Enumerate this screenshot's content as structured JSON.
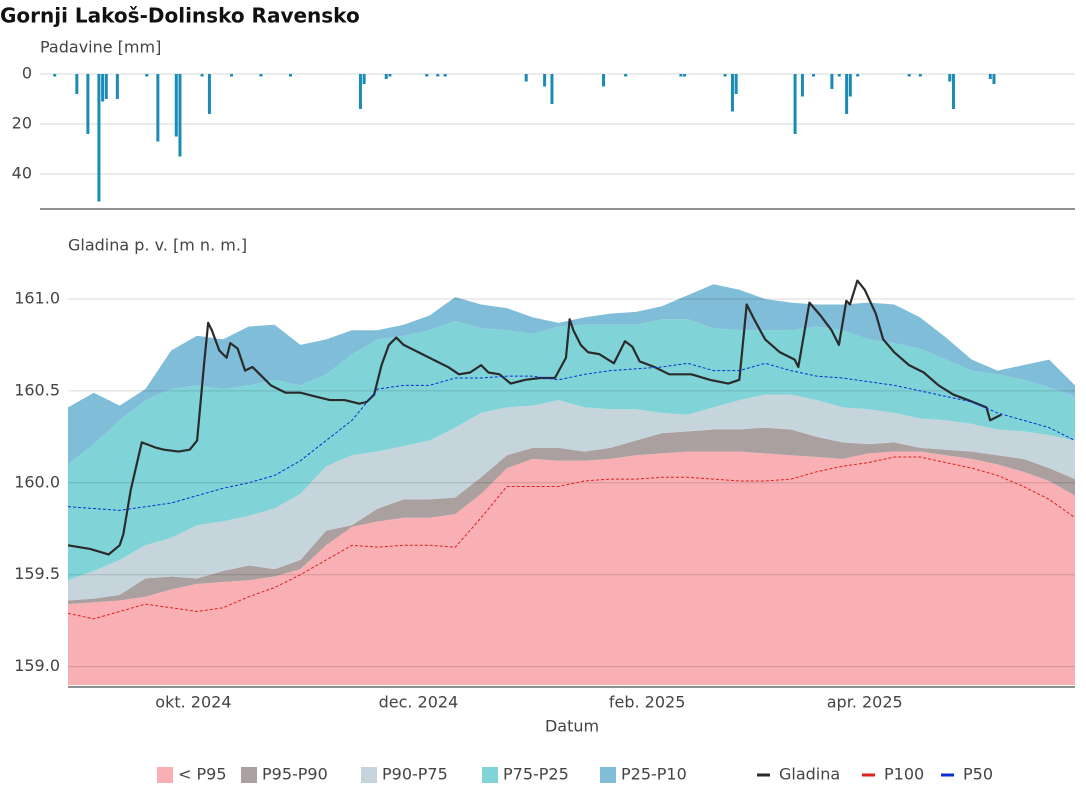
{
  "title": "Gornji Lakoš-Dolinsko Ravensko",
  "chart_data": [
    {
      "type": "bar",
      "ylabel": "Padavine [mm]",
      "color": "#1a8bb7",
      "xlim": [
        "2024-08-20",
        "2025-05-28"
      ],
      "ylim": [
        0,
        54
      ],
      "yticks": [
        0,
        20,
        40
      ],
      "y_reversed": true,
      "grid": true,
      "x": [
        "2024-08-24",
        "2024-08-30",
        "2024-09-02",
        "2024-09-05",
        "2024-09-06",
        "2024-09-07",
        "2024-09-10",
        "2024-09-18",
        "2024-09-21",
        "2024-09-26",
        "2024-09-27",
        "2024-10-03",
        "2024-10-05",
        "2024-10-11",
        "2024-10-19",
        "2024-10-27",
        "2024-11-15",
        "2024-11-16",
        "2024-11-22",
        "2024-11-23",
        "2024-12-03",
        "2024-12-06",
        "2024-12-08",
        "2024-12-30",
        "2025-01-04",
        "2025-01-06",
        "2025-01-20",
        "2025-01-26",
        "2025-02-10",
        "2025-02-11",
        "2025-02-22",
        "2025-02-24",
        "2025-02-25",
        "2025-03-13",
        "2025-03-15",
        "2025-03-18",
        "2025-03-23",
        "2025-03-25",
        "2025-03-27",
        "2025-03-28",
        "2025-03-30",
        "2025-04-13",
        "2025-04-16",
        "2025-04-24",
        "2025-04-25",
        "2025-05-05",
        "2025-05-06"
      ],
      "values": [
        1,
        8,
        24,
        51,
        11,
        10,
        10,
        1,
        27,
        25,
        33,
        1,
        16,
        1,
        1,
        1,
        14,
        4,
        2,
        1,
        1,
        1,
        1,
        3,
        5,
        12,
        5,
        1,
        1,
        1,
        1,
        15,
        8,
        24,
        9,
        1,
        6,
        1,
        16,
        9,
        1,
        1,
        1,
        3,
        14,
        2,
        4
      ]
    },
    {
      "type": "area",
      "ylabel": "Gladina p. v. [m n. m.]",
      "xlabel": "Datum",
      "legend": "bottom",
      "grid": true,
      "xlim": [
        "2024-08-28",
        "2025-05-28"
      ],
      "ylim": [
        158.9,
        161.25
      ],
      "yticks": [
        {
          "value": 159,
          "label": "159.0"
        },
        159.5,
        {
          "value": 160,
          "label": "160.0"
        },
        160.5,
        {
          "value": 161,
          "label": "161.0"
        }
      ],
      "xticks": [
        {
          "value": "2024-10-01",
          "label": "okt. 2024"
        },
        {
          "value": "2024-12-01",
          "label": "dec. 2024"
        },
        {
          "value": "2025-02-01",
          "label": "feb. 2025"
        },
        {
          "value": "2025-04-01",
          "label": "apr. 2025"
        }
      ],
      "x": [
        "2024-08-28",
        "2024-09-04",
        "2024-09-11",
        "2024-09-18",
        "2024-09-25",
        "2024-10-02",
        "2024-10-09",
        "2024-10-16",
        "2024-10-23",
        "2024-10-30",
        "2024-11-06",
        "2024-11-13",
        "2024-11-20",
        "2024-11-27",
        "2024-12-04",
        "2024-12-11",
        "2024-12-18",
        "2024-12-25",
        "2025-01-01",
        "2025-01-08",
        "2025-01-15",
        "2025-01-22",
        "2025-01-29",
        "2025-02-05",
        "2025-02-12",
        "2025-02-19",
        "2025-02-26",
        "2025-03-05",
        "2025-03-12",
        "2025-03-19",
        "2025-03-26",
        "2025-04-02",
        "2025-04-09",
        "2025-04-16",
        "2025-04-23",
        "2025-04-30",
        "2025-05-07",
        "2025-05-14",
        "2025-05-21",
        "2025-05-28"
      ],
      "series": [
        {
          "name": "< P95",
          "kind": "band",
          "color": "#f8b0b4",
          "values": [
            159.34,
            159.35,
            159.36,
            159.38,
            159.42,
            159.45,
            159.46,
            159.47,
            159.49,
            159.53,
            159.66,
            159.76,
            159.79,
            159.81,
            159.81,
            159.83,
            159.94,
            160.08,
            160.13,
            160.12,
            160.12,
            160.13,
            160.15,
            160.16,
            160.17,
            160.17,
            160.17,
            160.16,
            160.15,
            160.14,
            160.13,
            160.16,
            160.17,
            160.17,
            160.15,
            160.13,
            160.1,
            160.06,
            160.01,
            159.93
          ]
        },
        {
          "name": "P95-P90",
          "kind": "band",
          "color": "#aaa09f",
          "values": [
            159.36,
            159.37,
            159.39,
            159.48,
            159.49,
            159.48,
            159.52,
            159.55,
            159.53,
            159.58,
            159.74,
            159.77,
            159.86,
            159.91,
            159.91,
            159.92,
            160.03,
            160.15,
            160.19,
            160.19,
            160.17,
            160.19,
            160.23,
            160.27,
            160.28,
            160.29,
            160.29,
            160.3,
            160.29,
            160.25,
            160.22,
            160.21,
            160.22,
            160.19,
            160.18,
            160.17,
            160.15,
            160.13,
            160.08,
            160.02
          ]
        },
        {
          "name": "P90-P75",
          "kind": "band",
          "color": "#c6d5dc",
          "values": [
            159.47,
            159.52,
            159.58,
            159.66,
            159.7,
            159.77,
            159.79,
            159.82,
            159.86,
            159.94,
            160.09,
            160.15,
            160.17,
            160.2,
            160.23,
            160.3,
            160.38,
            160.41,
            160.42,
            160.45,
            160.41,
            160.4,
            160.4,
            160.38,
            160.37,
            160.41,
            160.45,
            160.48,
            160.48,
            160.45,
            160.41,
            160.4,
            160.38,
            160.35,
            160.34,
            160.32,
            160.29,
            160.28,
            160.26,
            160.23
          ]
        },
        {
          "name": "P75-P25",
          "kind": "band",
          "color": "#80d4d8",
          "values": [
            160.1,
            160.21,
            160.34,
            160.45,
            160.51,
            160.53,
            160.51,
            160.53,
            160.56,
            160.53,
            160.59,
            160.7,
            160.78,
            160.8,
            160.83,
            160.88,
            160.84,
            160.83,
            160.81,
            160.85,
            160.86,
            160.86,
            160.86,
            160.89,
            160.89,
            160.84,
            160.83,
            160.83,
            160.83,
            160.85,
            160.83,
            160.78,
            160.76,
            160.73,
            160.67,
            160.61,
            160.59,
            160.56,
            160.52,
            160.47
          ]
        },
        {
          "name": "P25-P10",
          "kind": "band",
          "color": "#80bdd9",
          "values": [
            160.41,
            160.49,
            160.42,
            160.51,
            160.72,
            160.8,
            160.78,
            160.85,
            160.86,
            160.75,
            160.78,
            160.83,
            160.83,
            160.86,
            160.91,
            161.01,
            160.97,
            160.95,
            160.9,
            160.87,
            160.9,
            160.92,
            160.93,
            160.96,
            161.02,
            161.08,
            161.05,
            161.0,
            160.98,
            160.97,
            160.97,
            160.98,
            160.97,
            160.9,
            160.79,
            160.67,
            160.61,
            160.64,
            160.67,
            160.53
          ]
        },
        {
          "name": "Gladina",
          "kind": "line",
          "color": "#2b2b2b",
          "x": [
            "2024-08-28",
            "2024-09-03",
            "2024-09-08",
            "2024-09-11",
            "2024-09-12",
            "2024-09-14",
            "2024-09-17",
            "2024-09-21",
            "2024-09-23",
            "2024-09-27",
            "2024-09-30",
            "2024-10-02",
            "2024-10-04",
            "2024-10-05",
            "2024-10-06",
            "2024-10-08",
            "2024-10-10",
            "2024-10-11",
            "2024-10-13",
            "2024-10-15",
            "2024-10-17",
            "2024-10-19",
            "2024-10-22",
            "2024-10-26",
            "2024-10-30",
            "2024-11-03",
            "2024-11-07",
            "2024-11-11",
            "2024-11-15",
            "2024-11-17",
            "2024-11-19",
            "2024-11-21",
            "2024-11-23",
            "2024-11-25",
            "2024-11-27",
            "2024-12-01",
            "2024-12-06",
            "2024-12-09",
            "2024-12-12",
            "2024-12-15",
            "2024-12-18",
            "2024-12-20",
            "2024-12-23",
            "2024-12-26",
            "2024-12-30",
            "2025-01-03",
            "2025-01-07",
            "2025-01-10",
            "2025-01-11",
            "2025-01-12",
            "2025-01-14",
            "2025-01-16",
            "2025-01-19",
            "2025-01-23",
            "2025-01-26",
            "2025-01-28",
            "2025-01-30",
            "2025-02-03",
            "2025-02-07",
            "2025-02-13",
            "2025-02-18",
            "2025-02-23",
            "2025-02-26",
            "2025-02-28",
            "2025-03-02",
            "2025-03-05",
            "2025-03-09",
            "2025-03-13",
            "2025-03-14",
            "2025-03-17",
            "2025-03-20",
            "2025-03-23",
            "2025-03-25",
            "2025-03-27",
            "2025-03-28",
            "2025-03-30",
            "2025-04-01",
            "2025-04-04",
            "2025-04-06",
            "2025-04-09",
            "2025-04-13",
            "2025-04-17",
            "2025-04-21",
            "2025-04-25",
            "2025-04-29",
            "2025-05-04",
            "2025-05-05",
            "2025-05-08"
          ],
          "values": [
            159.66,
            159.64,
            159.61,
            159.66,
            159.72,
            159.96,
            160.22,
            160.19,
            160.18,
            160.17,
            160.18,
            160.23,
            160.67,
            160.87,
            160.83,
            160.72,
            160.68,
            160.76,
            160.73,
            160.61,
            160.63,
            160.59,
            160.53,
            160.49,
            160.49,
            160.47,
            160.45,
            160.45,
            160.43,
            160.44,
            160.48,
            160.64,
            160.75,
            160.79,
            160.75,
            160.71,
            160.66,
            160.63,
            160.59,
            160.6,
            160.64,
            160.6,
            160.59,
            160.54,
            160.56,
            160.57,
            160.57,
            160.68,
            160.89,
            160.83,
            160.75,
            160.71,
            160.7,
            160.65,
            160.77,
            160.74,
            160.66,
            160.63,
            160.59,
            160.59,
            160.56,
            160.54,
            160.56,
            160.97,
            160.89,
            160.78,
            160.71,
            160.67,
            160.63,
            160.98,
            160.91,
            160.83,
            160.75,
            160.99,
            160.97,
            161.1,
            161.05,
            160.92,
            160.78,
            160.71,
            160.64,
            160.6,
            160.53,
            160.48,
            160.45,
            160.41,
            160.34,
            160.37
          ]
        },
        {
          "name": "P100",
          "kind": "line",
          "dash": true,
          "color": "#e0201e",
          "values": [
            159.29,
            159.26,
            159.3,
            159.34,
            159.32,
            159.3,
            159.32,
            159.38,
            159.43,
            159.5,
            159.58,
            159.66,
            159.65,
            159.66,
            159.66,
            159.65,
            159.81,
            159.98,
            159.98,
            159.98,
            160.01,
            160.02,
            160.02,
            160.03,
            160.03,
            160.02,
            160.01,
            160.01,
            160.02,
            160.06,
            160.09,
            160.11,
            160.14,
            160.14,
            160.11,
            160.08,
            160.04,
            159.98,
            159.91,
            159.81
          ]
        },
        {
          "name": "P50",
          "kind": "line",
          "dash": true,
          "color": "#0a2fd0",
          "values": [
            159.87,
            159.86,
            159.85,
            159.87,
            159.89,
            159.93,
            159.97,
            160.0,
            160.04,
            160.12,
            160.23,
            160.34,
            160.51,
            160.53,
            160.53,
            160.57,
            160.57,
            160.58,
            160.58,
            160.56,
            160.59,
            160.61,
            160.62,
            160.63,
            160.65,
            160.61,
            160.61,
            160.65,
            160.61,
            160.58,
            160.57,
            160.55,
            160.53,
            160.5,
            160.47,
            160.44,
            160.38,
            160.34,
            160.3,
            160.23
          ]
        }
      ]
    }
  ]
}
